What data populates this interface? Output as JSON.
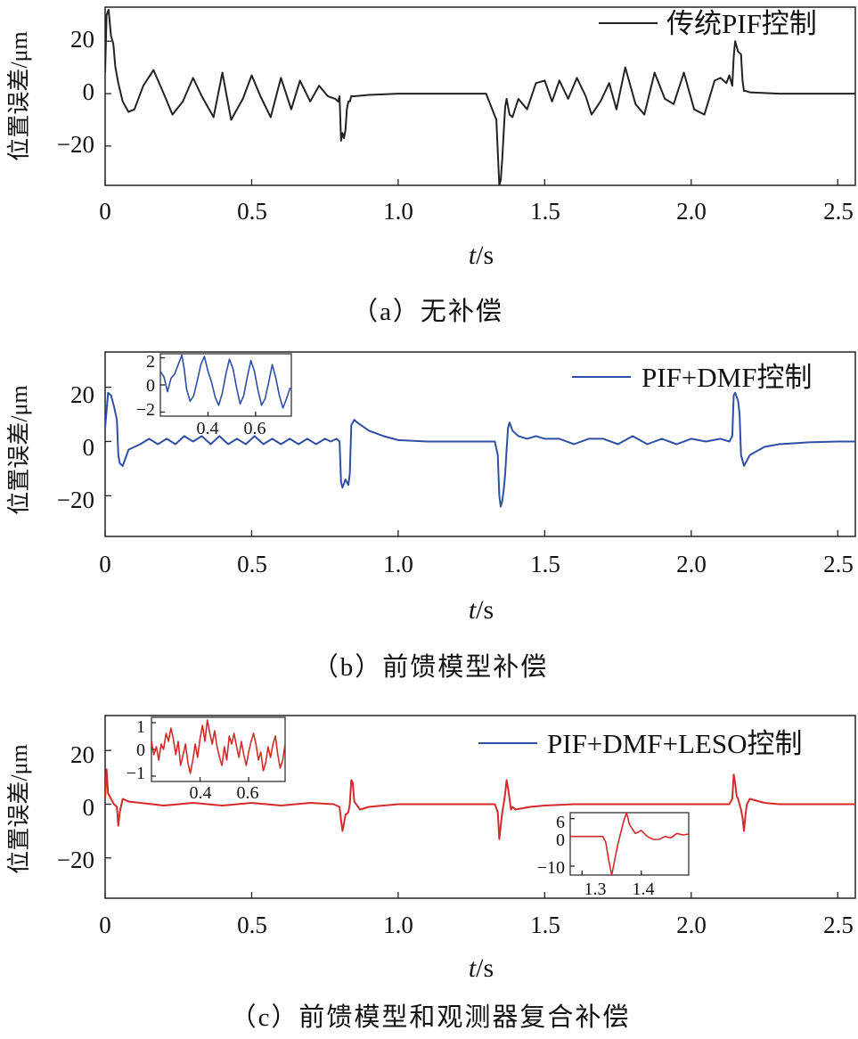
{
  "chart_data": [
    {
      "id": "a",
      "type": "line",
      "caption": "（a）无补偿",
      "xlabel_italic": "t",
      "xlabel_unit": "/s",
      "ylabel": "位置误差/μm",
      "xlim": [
        0,
        2.56
      ],
      "ylim": [
        -35,
        33
      ],
      "xticks": [
        "0",
        "0.5",
        "1.0",
        "1.5",
        "2.0",
        "2.5"
      ],
      "xtick_values": [
        0,
        0.5,
        1.0,
        1.5,
        2.0,
        2.5
      ],
      "yticks": [
        "20",
        "0",
        "−20"
      ],
      "ytick_values": [
        20,
        0,
        -20
      ],
      "legend_position": "top-right",
      "series": [
        {
          "name": "传统PIF控制",
          "color": "#222222",
          "x": [
            0,
            0.005,
            0.012,
            0.02,
            0.028,
            0.035,
            0.045,
            0.06,
            0.08,
            0.1,
            0.13,
            0.165,
            0.2,
            0.23,
            0.265,
            0.3,
            0.33,
            0.37,
            0.4,
            0.43,
            0.47,
            0.5,
            0.53,
            0.565,
            0.6,
            0.635,
            0.665,
            0.7,
            0.73,
            0.76,
            0.785,
            0.795,
            0.8,
            0.805,
            0.81,
            0.815,
            0.82,
            0.825,
            0.83,
            0.835,
            0.84,
            0.85,
            0.9,
            1.0,
            1.1,
            1.2,
            1.3,
            1.335,
            1.345,
            1.35,
            1.355,
            1.36,
            1.365,
            1.37,
            1.38,
            1.39,
            1.41,
            1.44,
            1.47,
            1.5,
            1.525,
            1.55,
            1.58,
            1.61,
            1.64,
            1.66,
            1.69,
            1.72,
            1.745,
            1.775,
            1.81,
            1.84,
            1.875,
            1.91,
            1.94,
            1.975,
            2.01,
            2.045,
            2.08,
            2.1,
            2.12,
            2.13,
            2.14,
            2.145,
            2.15,
            2.16,
            2.17,
            2.175,
            2.18,
            2.185,
            2.2,
            2.3,
            2.4,
            2.5,
            2.56
          ],
          "y": [
            8,
            30,
            32,
            22,
            19,
            10,
            4,
            -3,
            -7,
            -6,
            3,
            9,
            0,
            -8,
            -3,
            6,
            -1,
            -9,
            8,
            -10,
            -2,
            7,
            -1,
            -9,
            6,
            -6,
            5,
            -3,
            3,
            -1,
            -2,
            -3,
            -1,
            -18,
            -15,
            -17,
            -14,
            -6,
            -3,
            -3,
            -1,
            -1,
            -0.5,
            0,
            0,
            0,
            0,
            -10,
            -35,
            -33,
            -25,
            -15,
            -5,
            -2,
            -8,
            -9,
            -2,
            -6,
            4,
            5,
            -3,
            5,
            -2,
            6,
            -1,
            -8,
            -3,
            4,
            -6,
            10,
            -4,
            -8,
            8,
            -2,
            -4,
            8,
            -6,
            -8,
            5,
            6,
            4,
            7,
            3,
            14,
            20,
            16,
            15,
            5,
            1,
            1,
            0.5,
            0,
            0,
            0,
            0
          ]
        }
      ]
    },
    {
      "id": "b",
      "type": "line",
      "caption": "（b）前馈模型补偿",
      "xlabel_italic": "t",
      "xlabel_unit": "/s",
      "ylabel": "位置误差/μm",
      "xlim": [
        0,
        2.56
      ],
      "ylim": [
        -35,
        33
      ],
      "xticks": [
        "0",
        "0.5",
        "1.0",
        "1.5",
        "2.0",
        "2.5"
      ],
      "xtick_values": [
        0,
        0.5,
        1.0,
        1.5,
        2.0,
        2.5
      ],
      "yticks": [
        "20",
        "0",
        "−20"
      ],
      "ytick_values": [
        20,
        0,
        -20
      ],
      "legend_position": "top-right",
      "series": [
        {
          "name": "PIF+DMF控制",
          "color": "#2e4fa3",
          "x": [
            0,
            0.01,
            0.02,
            0.03,
            0.04,
            0.045,
            0.05,
            0.06,
            0.07,
            0.08,
            0.1,
            0.12,
            0.15,
            0.18,
            0.21,
            0.24,
            0.27,
            0.3,
            0.33,
            0.36,
            0.39,
            0.42,
            0.45,
            0.48,
            0.51,
            0.54,
            0.57,
            0.6,
            0.63,
            0.66,
            0.69,
            0.72,
            0.75,
            0.77,
            0.79,
            0.8,
            0.805,
            0.81,
            0.82,
            0.83,
            0.835,
            0.84,
            0.85,
            0.86,
            0.9,
            0.95,
            1.0,
            1.1,
            1.2,
            1.3,
            1.33,
            1.34,
            1.345,
            1.35,
            1.355,
            1.36,
            1.365,
            1.37,
            1.375,
            1.38,
            1.39,
            1.41,
            1.44,
            1.47,
            1.5,
            1.55,
            1.6,
            1.65,
            1.7,
            1.75,
            1.8,
            1.85,
            1.9,
            1.95,
            2.0,
            2.05,
            2.1,
            2.13,
            2.14,
            2.145,
            2.15,
            2.16,
            2.165,
            2.17,
            2.18,
            2.19,
            2.2,
            2.25,
            2.3,
            2.4,
            2.5,
            2.56
          ],
          "y": [
            5,
            18,
            17,
            13,
            8,
            -5,
            -8,
            -9,
            -6,
            -3,
            -2,
            -1,
            1,
            -1,
            1,
            -1,
            2,
            0,
            2,
            -1,
            2,
            -1,
            1,
            -1,
            2,
            -1,
            1,
            -1,
            1,
            -1,
            1,
            -1,
            1,
            0,
            1,
            0,
            -15,
            -17,
            -14,
            -16,
            -12,
            6,
            8,
            7,
            4,
            2,
            0.5,
            0,
            0,
            0,
            0,
            -5,
            -20,
            -24,
            -22,
            -18,
            -12,
            -3,
            5,
            7,
            4,
            2,
            1,
            2,
            1,
            1,
            -1,
            1,
            1,
            -1,
            2,
            -1,
            1,
            -1,
            1,
            0,
            1,
            0,
            2,
            17,
            18,
            15,
            10,
            -5,
            -9,
            -7,
            -5,
            -2,
            -1,
            -0.3,
            0,
            0
          ]
        }
      ],
      "insets": [
        {
          "xlim": [
            0.2,
            0.75
          ],
          "ylim": [
            -2.3,
            2.3
          ],
          "xticks": [
            "0.4",
            "0.6"
          ],
          "xtick_values": [
            0.4,
            0.6
          ],
          "yticks": [
            "2",
            "0",
            "−2"
          ],
          "ytick_values": [
            2,
            0,
            -2
          ],
          "x": [
            0.2,
            0.215,
            0.23,
            0.245,
            0.26,
            0.275,
            0.29,
            0.3,
            0.31,
            0.325,
            0.34,
            0.355,
            0.37,
            0.385,
            0.4,
            0.415,
            0.43,
            0.445,
            0.46,
            0.475,
            0.49,
            0.505,
            0.52,
            0.535,
            0.55,
            0.565,
            0.58,
            0.595,
            0.61,
            0.625,
            0.64,
            0.655,
            0.67,
            0.685,
            0.7,
            0.715,
            0.73,
            0.745
          ],
          "y": [
            1,
            0.6,
            -0.5,
            0.5,
            0.8,
            1.5,
            2.2,
            1.2,
            -0.3,
            -1.2,
            -0.8,
            0.3,
            1.5,
            2.1,
            1.0,
            0.2,
            -0.9,
            -1.5,
            -0.6,
            0.8,
            1.9,
            1.2,
            -0.2,
            -1.4,
            -0.8,
            0.6,
            1.8,
            1.0,
            -0.4,
            -1.5,
            -1.0,
            0.2,
            1.5,
            0.5,
            -0.8,
            -1.7,
            -1.0,
            -0.2
          ]
        }
      ]
    },
    {
      "id": "c",
      "type": "line",
      "caption": "（c）前馈模型和观测器复合补偿",
      "xlabel_italic": "t",
      "xlabel_unit": "/s",
      "ylabel": "位置误差/μm",
      "xlim": [
        0,
        2.56
      ],
      "ylim": [
        -35,
        33
      ],
      "xticks": [
        "0",
        "0.5",
        "1.0",
        "1.5",
        "2.0",
        "2.5"
      ],
      "xtick_values": [
        0,
        0.5,
        1.0,
        1.5,
        2.0,
        2.5
      ],
      "yticks": [
        "20",
        "0",
        "−20"
      ],
      "ytick_values": [
        20,
        0,
        -20
      ],
      "legend_position": "top-right",
      "series": [
        {
          "name": "PIF+DMF+LESO控制",
          "color": "#d42a2a",
          "legend_line_color": "#2e4fa3",
          "x": [
            0,
            0.005,
            0.01,
            0.02,
            0.03,
            0.04,
            0.045,
            0.05,
            0.06,
            0.08,
            0.12,
            0.2,
            0.3,
            0.4,
            0.5,
            0.6,
            0.7,
            0.78,
            0.8,
            0.805,
            0.81,
            0.815,
            0.82,
            0.83,
            0.835,
            0.84,
            0.845,
            0.85,
            0.87,
            0.9,
            1.0,
            1.1,
            1.2,
            1.3,
            1.33,
            1.34,
            1.345,
            1.35,
            1.355,
            1.36,
            1.365,
            1.37,
            1.375,
            1.38,
            1.385,
            1.39,
            1.4,
            1.45,
            1.5,
            1.6,
            1.7,
            1.8,
            1.9,
            2.0,
            2.1,
            2.13,
            2.14,
            2.145,
            2.15,
            2.155,
            2.16,
            2.17,
            2.175,
            2.18,
            2.185,
            2.19,
            2.2,
            2.25,
            2.3,
            2.4,
            2.5,
            2.56
          ],
          "y": [
            2,
            13,
            4,
            2,
            0,
            -1,
            -8,
            -3,
            2,
            1,
            0.5,
            -0.5,
            0.5,
            -0.5,
            0.5,
            -0.5,
            0.5,
            0,
            -1,
            -6,
            -10,
            -7,
            -4,
            -3,
            0,
            9,
            8,
            1,
            -2,
            -1,
            0,
            0,
            0,
            0,
            0,
            -3,
            -13,
            -8,
            -3,
            0,
            4,
            9,
            6,
            2,
            -2,
            -1,
            -2,
            -1,
            -0.5,
            0,
            0,
            0,
            0,
            0,
            0,
            0,
            2,
            11,
            8,
            3,
            2,
            -2,
            -5,
            -10,
            -4,
            0,
            2,
            0.5,
            0,
            0,
            0,
            0
          ]
        }
      ],
      "insets": [
        {
          "xlim": [
            0.2,
            0.75
          ],
          "ylim": [
            -1.2,
            1.2
          ],
          "xticks": [
            "0.4",
            "0.6"
          ],
          "xtick_values": [
            0.4,
            0.6
          ],
          "yticks": [
            "1",
            "0",
            "−1"
          ],
          "ytick_values": [
            1,
            0,
            -1
          ],
          "x": [
            0.2,
            0.21,
            0.22,
            0.23,
            0.24,
            0.25,
            0.26,
            0.27,
            0.28,
            0.29,
            0.3,
            0.31,
            0.32,
            0.33,
            0.34,
            0.35,
            0.36,
            0.37,
            0.38,
            0.39,
            0.4,
            0.41,
            0.42,
            0.43,
            0.44,
            0.45,
            0.46,
            0.47,
            0.48,
            0.49,
            0.5,
            0.51,
            0.52,
            0.53,
            0.54,
            0.55,
            0.56,
            0.57,
            0.58,
            0.59,
            0.6,
            0.61,
            0.62,
            0.63,
            0.64,
            0.65,
            0.66,
            0.67,
            0.68,
            0.69,
            0.7,
            0.71,
            0.72,
            0.73,
            0.74,
            0.75
          ],
          "y": [
            0.3,
            -0.2,
            0.1,
            -0.4,
            0.2,
            0.0,
            0.6,
            0.3,
            0.8,
            0.4,
            -0.2,
            0.3,
            -0.6,
            -0.2,
            0.2,
            -0.5,
            -0.9,
            -0.4,
            0.2,
            -0.3,
            0.4,
            0.9,
            0.3,
            1.1,
            0.6,
            0.2,
            0.7,
            0.1,
            -0.3,
            -0.6,
            0.1,
            -0.4,
            0.5,
            0.2,
            0.6,
            0.1,
            -0.3,
            0.3,
            -0.2,
            -0.6,
            -0.1,
            0.3,
            0.6,
            0.2,
            -0.4,
            -0.1,
            -0.8,
            -0.5,
            0.1,
            -0.3,
            0.2,
            0.5,
            -0.2,
            -0.7,
            -0.4,
            0.2
          ]
        },
        {
          "xlim": [
            1.28,
            1.48
          ],
          "ylim": [
            -13,
            8
          ],
          "xticks": [
            "1.3",
            "1.4"
          ],
          "xtick_values": [
            1.3,
            1.4
          ],
          "yticks": [
            "6",
            "0",
            "−10"
          ],
          "ytick_values": [
            6,
            0,
            -10
          ],
          "x": [
            1.28,
            1.3,
            1.32,
            1.335,
            1.34,
            1.345,
            1.35,
            1.355,
            1.36,
            1.365,
            1.37,
            1.375,
            1.38,
            1.39,
            1.4,
            1.41,
            1.42,
            1.43,
            1.44,
            1.45,
            1.46,
            1.47,
            1.48
          ],
          "y": [
            0,
            0,
            0,
            0,
            -2,
            -8,
            -13,
            -8,
            -3,
            1,
            5,
            8,
            4,
            1,
            2,
            0,
            -1,
            -1,
            0,
            -0.5,
            1,
            0.5,
            0.8
          ]
        }
      ]
    }
  ]
}
